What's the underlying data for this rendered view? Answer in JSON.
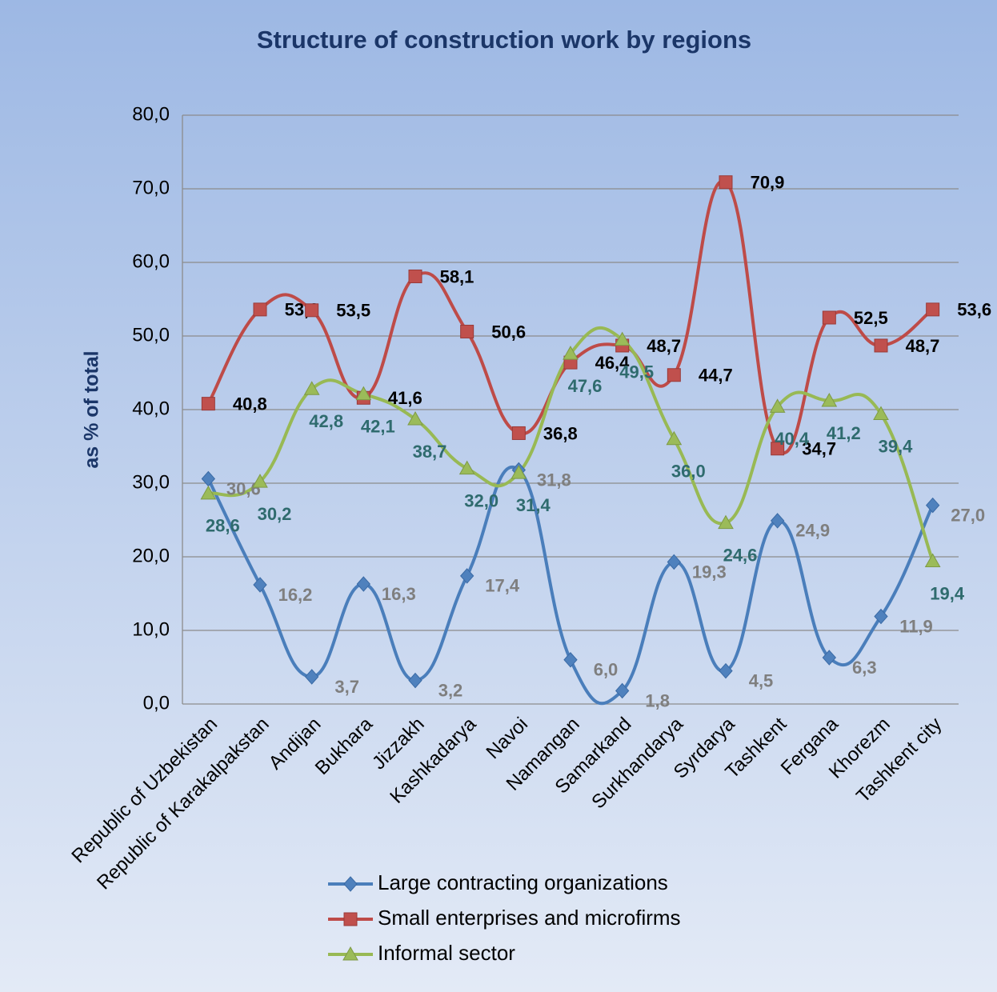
{
  "chart_data": {
    "type": "line",
    "title": "Structure of construction work by regions",
    "y_label": "as % of total",
    "categories": [
      "Republic of Uzbekistan",
      "Republic of Karakalpakstan",
      "Andijan",
      "Bukhara",
      "Jizzakh",
      "Kashkadarya",
      "Navoi",
      "Namangan",
      "Samarkand",
      "Surkhandarya",
      "Syrdarya",
      "Tashkent",
      "Fergana",
      "Khorezm",
      "Tashkent city"
    ],
    "series": [
      {
        "name": "Large contracting organizations",
        "color": "#4a7ebb",
        "marker": "diamond",
        "values": [
          30.6,
          16.2,
          3.7,
          16.3,
          3.2,
          17.4,
          31.8,
          6.0,
          1.8,
          19.3,
          4.5,
          24.9,
          6.3,
          11.9,
          27.0
        ],
        "value_labels": [
          "30,6",
          "16,2",
          "3,7",
          "16,3",
          "3,2",
          "17,4",
          "31,8",
          "6,0",
          "1,8",
          "19,3",
          "4,5",
          "24,9",
          "6,3",
          "11,9",
          "27,0"
        ]
      },
      {
        "name": "Small enterprises and microfirms",
        "color": "#be4b48",
        "marker": "square",
        "values": [
          40.8,
          53.6,
          53.5,
          41.6,
          58.1,
          50.6,
          36.8,
          46.4,
          48.7,
          44.7,
          70.9,
          34.7,
          52.5,
          48.7,
          53.6
        ],
        "value_labels": [
          "40,8",
          "53,6",
          "53,5",
          "41,6",
          "58,1",
          "50,6",
          "36,8",
          "46,4",
          "48,7",
          "44,7",
          "70,9",
          "34,7",
          "52,5",
          "48,7",
          "53,6"
        ]
      },
      {
        "name": "Informal sector",
        "color": "#98b954",
        "marker": "triangle",
        "values": [
          28.6,
          30.2,
          42.8,
          42.1,
          38.7,
          32.0,
          31.4,
          47.6,
          49.5,
          36.0,
          24.6,
          40.4,
          41.2,
          39.4,
          19.4
        ],
        "value_labels": [
          "28,6",
          "30,2",
          "42,8",
          "42,1",
          "38,7",
          "32,0",
          "31,4",
          "47,6",
          "49,5",
          "36,0",
          "24,6",
          "40,4",
          "41,2",
          "39,4",
          "19,4"
        ]
      }
    ],
    "ylim": [
      0,
      80
    ],
    "yticks": [
      {
        "value": 0,
        "label": "0,0"
      },
      {
        "value": 10,
        "label": "10,0"
      },
      {
        "value": 20,
        "label": "20,0"
      },
      {
        "value": 30,
        "label": "30,0"
      },
      {
        "value": 40,
        "label": "40,0"
      },
      {
        "value": 50,
        "label": "50,0"
      },
      {
        "value": 60,
        "label": "60,0"
      },
      {
        "value": 70,
        "label": "70,0"
      },
      {
        "value": 80,
        "label": "80,0"
      }
    ],
    "grid": true,
    "smooth": true,
    "legend": "bottom"
  }
}
